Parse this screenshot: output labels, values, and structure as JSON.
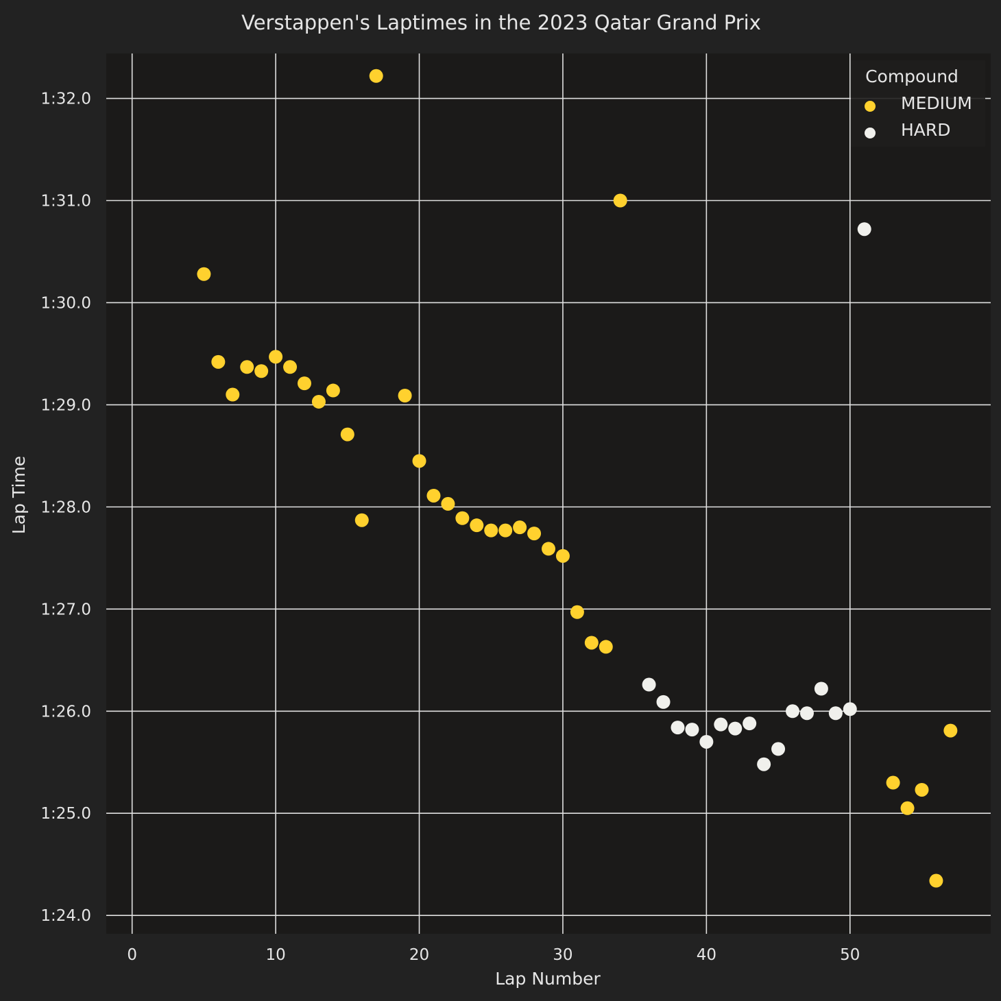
{
  "chart_data": {
    "type": "scatter",
    "title": "Verstappen's Laptimes in the 2023 Qatar Grand Prix",
    "xlabel": "Lap Number",
    "ylabel": "Lap Time",
    "xlim": [
      -1.8,
      59.8
    ],
    "ylim": [
      83.82,
      92.44
    ],
    "x_ticks": [
      0,
      10,
      20,
      30,
      40,
      50
    ],
    "y_ticks": [
      {
        "value": 84,
        "label": "1:24.0"
      },
      {
        "value": 85,
        "label": "1:25.0"
      },
      {
        "value": 86,
        "label": "1:26.0"
      },
      {
        "value": 87,
        "label": "1:27.0"
      },
      {
        "value": 88,
        "label": "1:28.0"
      },
      {
        "value": 89,
        "label": "1:29.0"
      },
      {
        "value": 90,
        "label": "1:30.0"
      },
      {
        "value": 91,
        "label": "1:31.0"
      },
      {
        "value": 92,
        "label": "1:32.0"
      }
    ],
    "grid": true,
    "legend": {
      "title": "Compound",
      "position": "top-right"
    },
    "colors": {
      "figure_background": "#222222",
      "plot_background": "#1b1a19",
      "grid": "#e0e0e0",
      "text": "#e6e6e6"
    },
    "series": [
      {
        "name": "MEDIUM",
        "color": "#ffd12e",
        "points": [
          [
            5,
            90.28
          ],
          [
            6,
            89.42
          ],
          [
            7,
            89.1
          ],
          [
            8,
            89.37
          ],
          [
            9,
            89.33
          ],
          [
            10,
            89.47
          ],
          [
            11,
            89.37
          ],
          [
            12,
            89.21
          ],
          [
            13,
            89.03
          ],
          [
            14,
            89.14
          ],
          [
            15,
            88.71
          ],
          [
            16,
            87.87
          ],
          [
            17,
            92.22
          ],
          [
            19,
            89.09
          ],
          [
            20,
            88.45
          ],
          [
            21,
            88.11
          ],
          [
            22,
            88.03
          ],
          [
            23,
            87.89
          ],
          [
            24,
            87.82
          ],
          [
            25,
            87.77
          ],
          [
            26,
            87.77
          ],
          [
            27,
            87.8
          ],
          [
            28,
            87.74
          ],
          [
            29,
            87.59
          ],
          [
            30,
            87.52
          ],
          [
            31,
            86.97
          ],
          [
            32,
            86.67
          ],
          [
            33,
            86.63
          ],
          [
            34,
            91.0
          ],
          [
            53,
            85.3
          ],
          [
            54,
            85.05
          ],
          [
            55,
            85.23
          ],
          [
            56,
            84.34
          ],
          [
            57,
            85.81
          ]
        ]
      },
      {
        "name": "HARD",
        "color": "#f0f0ec",
        "points": [
          [
            36,
            86.26
          ],
          [
            37,
            86.09
          ],
          [
            38,
            85.84
          ],
          [
            39,
            85.82
          ],
          [
            40,
            85.7
          ],
          [
            41,
            85.87
          ],
          [
            42,
            85.83
          ],
          [
            43,
            85.88
          ],
          [
            44,
            85.48
          ],
          [
            45,
            85.63
          ],
          [
            46,
            86.0
          ],
          [
            47,
            85.98
          ],
          [
            48,
            86.22
          ],
          [
            49,
            85.98
          ],
          [
            50,
            86.02
          ],
          [
            51,
            90.72
          ]
        ]
      }
    ]
  }
}
